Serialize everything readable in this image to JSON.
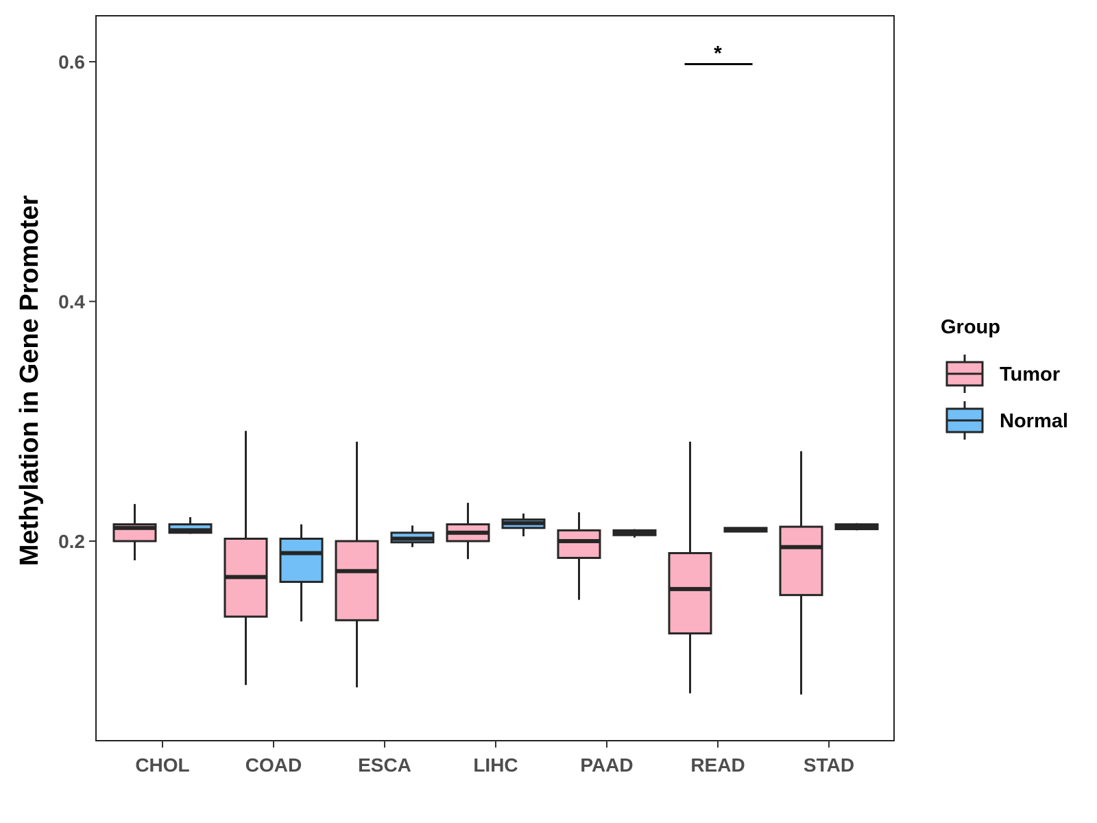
{
  "chart_data": {
    "type": "boxplot",
    "title": "",
    "xlabel": "",
    "ylabel": "Methylation in Gene Promoter",
    "ylim": [
      0.03,
      0.64
    ],
    "yticks": [
      0.2,
      0.4,
      0.6
    ],
    "ytick_labels": [
      "0.2",
      "0.4",
      "0.6"
    ],
    "categories": [
      "CHOL",
      "COAD",
      "ESCA",
      "LIHC",
      "PAAD",
      "READ",
      "STAD"
    ],
    "legend": {
      "title": "Group",
      "position": "right",
      "entries": [
        {
          "name": "Tumor",
          "color": "#FBB1C1"
        },
        {
          "name": "Normal",
          "color": "#72BFF8"
        }
      ]
    },
    "series": [
      {
        "name": "Tumor",
        "color": "#FBB1C1",
        "boxes": [
          {
            "category": "CHOL",
            "min": 0.184,
            "q1": 0.2,
            "median": 0.211,
            "q3": 0.214,
            "max": 0.231
          },
          {
            "category": "COAD",
            "min": 0.08,
            "q1": 0.137,
            "median": 0.17,
            "q3": 0.202,
            "max": 0.292
          },
          {
            "category": "ESCA",
            "min": 0.078,
            "q1": 0.134,
            "median": 0.175,
            "q3": 0.2,
            "max": 0.283
          },
          {
            "category": "LIHC",
            "min": 0.185,
            "q1": 0.2,
            "median": 0.207,
            "q3": 0.214,
            "max": 0.232
          },
          {
            "category": "PAAD",
            "min": 0.151,
            "q1": 0.186,
            "median": 0.2,
            "q3": 0.209,
            "max": 0.224
          },
          {
            "category": "READ",
            "min": 0.073,
            "q1": 0.123,
            "median": 0.16,
            "q3": 0.19,
            "max": 0.283
          },
          {
            "category": "STAD",
            "min": 0.072,
            "q1": 0.155,
            "median": 0.195,
            "q3": 0.212,
            "max": 0.275
          }
        ]
      },
      {
        "name": "Normal",
        "color": "#72BFF8",
        "boxes": [
          {
            "category": "CHOL",
            "min": 0.206,
            "q1": 0.207,
            "median": 0.209,
            "q3": 0.214,
            "max": 0.22
          },
          {
            "category": "COAD",
            "min": 0.133,
            "q1": 0.166,
            "median": 0.19,
            "q3": 0.202,
            "max": 0.214
          },
          {
            "category": "ESCA",
            "min": 0.195,
            "q1": 0.199,
            "median": 0.202,
            "q3": 0.207,
            "max": 0.213
          },
          {
            "category": "LIHC",
            "min": 0.204,
            "q1": 0.211,
            "median": 0.215,
            "q3": 0.218,
            "max": 0.223
          },
          {
            "category": "PAAD",
            "min": 0.203,
            "q1": 0.205,
            "median": 0.207,
            "q3": 0.209,
            "max": 0.21
          },
          {
            "category": "READ",
            "min": 0.208,
            "q1": 0.208,
            "median": 0.209,
            "q3": 0.211,
            "max": 0.211
          },
          {
            "category": "STAD",
            "min": 0.209,
            "q1": 0.21,
            "median": 0.212,
            "q3": 0.214,
            "max": 0.215
          }
        ]
      }
    ],
    "annotations": [
      {
        "category": "READ",
        "label": "*",
        "y": 0.598
      }
    ]
  }
}
